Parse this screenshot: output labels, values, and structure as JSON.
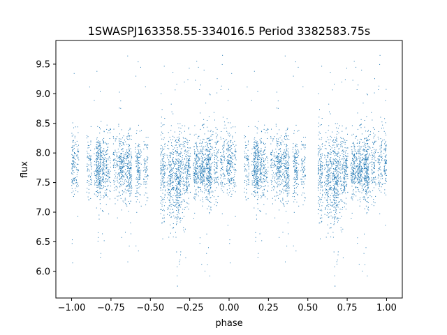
{
  "chart_data": {
    "type": "scatter",
    "title": "1SWASPJ163358.55-334016.5 Period 3382583.75s",
    "xlabel": "phase",
    "ylabel": "flux",
    "xlim": [
      -1.1,
      1.1
    ],
    "ylim": [
      5.55,
      9.9
    ],
    "xticks": [
      -1.0,
      -0.75,
      -0.5,
      -0.25,
      0.0,
      0.25,
      0.5,
      0.75,
      1.0
    ],
    "xtick_labels": [
      "−1.00",
      "−0.75",
      "−0.50",
      "−0.25",
      "0.00",
      "0.25",
      "0.50",
      "0.75",
      "1.00"
    ],
    "yticks": [
      6.0,
      6.5,
      7.0,
      7.5,
      8.0,
      8.5,
      9.0,
      9.5
    ],
    "ytick_labels": [
      "6.0",
      "6.5",
      "7.0",
      "7.5",
      "8.0",
      "8.5",
      "9.0",
      "9.5"
    ],
    "grid": false,
    "marker_color": "#1f77b4",
    "series": [
      {
        "phase_profile": [
          {
            "x": -1.0,
            "y": 7.85
          },
          {
            "x": -0.95,
            "y": 7.85
          },
          {
            "x": -0.9,
            "y": 7.75
          },
          {
            "x": -0.8,
            "y": 7.75
          },
          {
            "x": -0.7,
            "y": 7.75
          },
          {
            "x": -0.6,
            "y": 7.75
          },
          {
            "x": -0.5,
            "y": 7.7
          },
          {
            "x": -0.45,
            "y": 7.65
          },
          {
            "x": -0.35,
            "y": 7.55
          },
          {
            "x": -0.3,
            "y": 7.6
          },
          {
            "x": -0.25,
            "y": 7.75
          },
          {
            "x": -0.15,
            "y": 7.75
          },
          {
            "x": -0.05,
            "y": 7.85
          },
          {
            "x": 0.0,
            "y": 7.85
          },
          {
            "x": 0.05,
            "y": 7.85
          },
          {
            "x": 0.1,
            "y": 7.75
          },
          {
            "x": 0.2,
            "y": 7.75
          },
          {
            "x": 0.3,
            "y": 7.75
          },
          {
            "x": 0.4,
            "y": 7.75
          },
          {
            "x": 0.5,
            "y": 7.7
          },
          {
            "x": 0.55,
            "y": 7.65
          },
          {
            "x": 0.65,
            "y": 7.55
          },
          {
            "x": 0.7,
            "y": 7.6
          },
          {
            "x": 0.75,
            "y": 7.75
          },
          {
            "x": 0.85,
            "y": 7.75
          },
          {
            "x": 0.95,
            "y": 7.85
          },
          {
            "x": 1.0,
            "y": 7.85
          }
        ]
      }
    ]
  }
}
